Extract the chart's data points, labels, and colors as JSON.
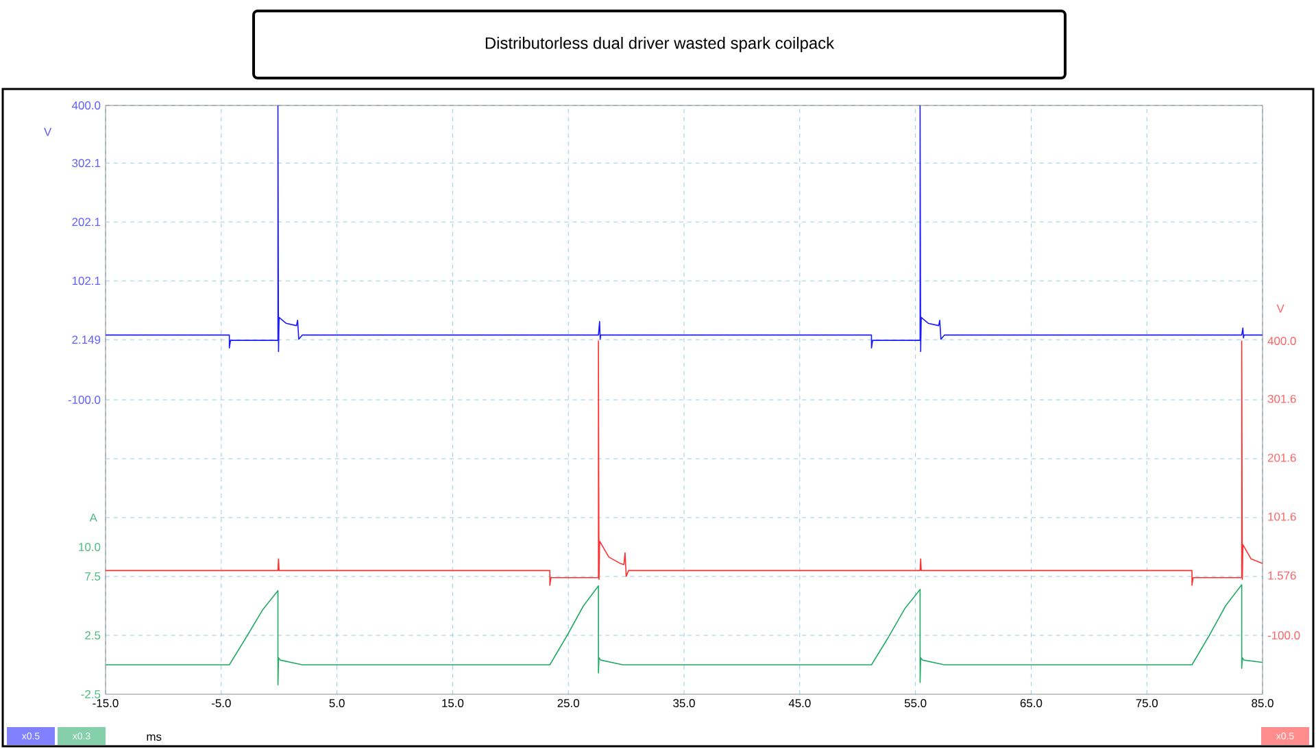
{
  "chart_data": {
    "type": "line",
    "title": "Distributorless dual driver wasted spark coilpack",
    "xlabel": "ms",
    "ylabel": "V",
    "y2label": "V",
    "y3label": "A",
    "xlim": [
      -15,
      85
    ],
    "xticks": [
      {
        "value": -15,
        "label": "-15.0"
      },
      {
        "value": -5,
        "label": "-5.0"
      },
      {
        "value": 5,
        "label": "5.0"
      },
      {
        "value": 15,
        "label": "15.0"
      },
      {
        "value": 25,
        "label": "25.0"
      },
      {
        "value": 35,
        "label": "35.0"
      },
      {
        "value": 45,
        "label": "45.0"
      },
      {
        "value": 55,
        "label": "55.0"
      },
      {
        "value": 65,
        "label": "65.0"
      },
      {
        "value": 75,
        "label": "75.0"
      },
      {
        "value": 85,
        "label": "85.0"
      }
    ],
    "ylim": [
      -600,
      400
    ],
    "yticks": [
      {
        "value": 400,
        "label": "400.0"
      },
      302.1,
      202.1,
      102.1,
      2.149,
      {
        "value": -100,
        "label": "-100.0"
      },
      {
        "value": -200,
        "label": null
      },
      {
        "value": -300,
        "label": null
      },
      {
        "value": -400,
        "label": null
      },
      {
        "value": -500,
        "label": null
      }
    ],
    "y2lim": [
      -200,
      800
    ],
    "y2ticks": [
      {
        "value": 400,
        "label": "400.0"
      },
      301.6,
      201.6,
      101.6,
      1.576,
      {
        "value": -100,
        "label": "-100.0"
      }
    ],
    "y3lim": [
      -2.5,
      47.5
    ],
    "y3ticks": [
      {
        "value": 10,
        "label": "10.0"
      },
      7.5,
      2.5,
      -2.5
    ],
    "grid": true,
    "annotations": [
      "x0.5",
      "x0.3",
      "x0.5"
    ],
    "series": [
      {
        "color": "#1a1aff",
        "axis": "y",
        "x": [
          -15,
          -4.3,
          -4.3,
          -4.2,
          -0.1,
          -0.1,
          -0.05,
          0,
          0.6,
          1.5,
          1.6,
          1.7,
          2.0,
          27.6,
          27.7,
          27.75,
          27.8,
          51.2,
          51.2,
          51.3,
          55.4,
          55.4,
          55.45,
          55.5,
          56.1,
          57.0,
          57.1,
          57.2,
          57.5,
          83.2,
          83.3,
          83.35,
          83.4,
          85
        ],
        "values": [
          10,
          10,
          -12,
          1,
          1,
          400,
          -18,
          40,
          30,
          26,
          35,
          3,
          10,
          10,
          33,
          3,
          10,
          10,
          -12,
          1,
          1,
          400,
          -18,
          40,
          30,
          26,
          35,
          3,
          10,
          10,
          22,
          5,
          10,
          10
        ]
      },
      {
        "color": "#ff3030",
        "axis": "y2",
        "x": [
          -15,
          -0.1,
          -0.05,
          0,
          23.4,
          23.4,
          23.5,
          27.6,
          27.6,
          27.65,
          27.7,
          28.5,
          29.5,
          29.8,
          29.9,
          30.0,
          30.2,
          55.4,
          55.45,
          55.5,
          78.9,
          78.9,
          79.0,
          83.2,
          83.2,
          83.25,
          83.3,
          84.0,
          85
        ],
        "values": [
          10,
          10,
          30,
          10,
          10,
          -15,
          -2,
          -2,
          400,
          -5,
          60,
          33,
          22,
          20,
          40,
          0,
          10,
          10,
          30,
          10,
          10,
          -15,
          -2,
          -2,
          400,
          -5,
          54,
          30,
          22
        ]
      },
      {
        "color": "#22aa66",
        "axis": "y3",
        "x": [
          -15,
          -4.3,
          -2.8,
          -1.4,
          -0.1,
          -0.1,
          -0.05,
          0.1,
          2.0,
          23.4,
          24.9,
          26.3,
          27.6,
          27.6,
          27.65,
          27.8,
          29.7,
          51.2,
          52.7,
          54.1,
          55.4,
          55.4,
          55.45,
          55.6,
          57.5,
          78.9,
          80.4,
          81.8,
          83.2,
          83.2,
          83.25,
          83.4,
          85
        ],
        "values": [
          0,
          0,
          2.4,
          4.7,
          6.3,
          -1.7,
          0.6,
          0.4,
          0,
          0,
          2.5,
          5,
          6.7,
          -0.7,
          0.6,
          0.4,
          0,
          0,
          2.4,
          4.8,
          6.4,
          -1.5,
          0.6,
          0.4,
          0,
          0,
          2.5,
          5,
          6.8,
          -0.3,
          0.6,
          0.4,
          0.2
        ]
      }
    ]
  }
}
